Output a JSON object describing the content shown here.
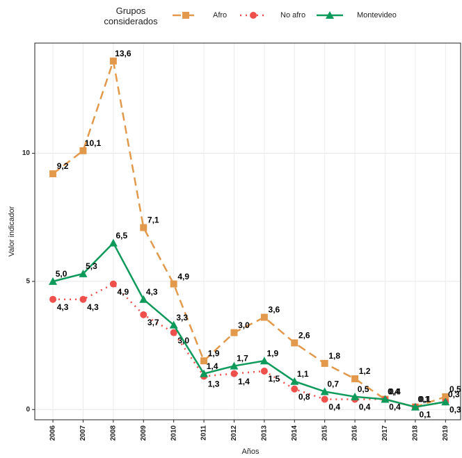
{
  "chart_data": {
    "type": "line",
    "legend_title": "Grupos considerados",
    "x_label": "Años",
    "y_label": "Valor indicador",
    "x": [
      2006,
      2007,
      2008,
      2009,
      2010,
      2011,
      2012,
      2013,
      2014,
      2015,
      2016,
      2017,
      2018,
      2019
    ],
    "xlim": [
      2005.4,
      2019.5
    ],
    "xticks": [
      2006,
      2007,
      2008,
      2009,
      2010,
      2011,
      2012,
      2013,
      2014,
      2015,
      2016,
      2017,
      2018,
      2019
    ],
    "ylim": [
      -0.4,
      14.3
    ],
    "yticks": [
      0,
      5,
      10
    ],
    "grid": true,
    "series": [
      {
        "name": "Afro",
        "color": "#e3994b",
        "dash": "dashed",
        "marker": "square",
        "values": [
          9.2,
          10.1,
          13.6,
          7.1,
          4.9,
          1.9,
          3.0,
          3.6,
          2.6,
          1.8,
          1.2,
          0.4,
          0.1,
          0.5
        ],
        "value_labels": [
          "9,2",
          "10,1",
          "13,6",
          "7,1",
          "4,9",
          "1,9",
          "3,0",
          "3,6",
          "2,6",
          "1,8",
          "1,2",
          "0,4",
          "0,1",
          "0,5"
        ]
      },
      {
        "name": "No afro",
        "color": "#f0504c",
        "dash": "dotted",
        "marker": "circle",
        "values": [
          4.3,
          4.3,
          4.9,
          3.7,
          3.0,
          1.3,
          1.4,
          1.5,
          0.8,
          0.4,
          0.4,
          0.4,
          0.1,
          0.3
        ],
        "value_labels": [
          "4,3",
          "4,3",
          "4,9",
          "3,7",
          "3,0",
          "1,3",
          "1,4",
          "1,5",
          "0,8",
          "0,4",
          "0,4",
          "0,4",
          "0,1",
          "0,3"
        ]
      },
      {
        "name": "Montevideo",
        "color": "#0e9a5a",
        "dash": "solid",
        "marker": "triangle",
        "values": [
          5.0,
          5.3,
          6.5,
          4.3,
          3.3,
          1.4,
          1.7,
          1.9,
          1.1,
          0.7,
          0.5,
          0.4,
          0.1,
          0.3
        ],
        "value_labels": [
          "5,0",
          "5,3",
          "6,5",
          "4,3",
          "3,3",
          "1,4",
          "1,7",
          "1,9",
          "1,1",
          "0,7",
          "0,5",
          "0,4",
          "0,1",
          "0,3"
        ]
      }
    ]
  }
}
